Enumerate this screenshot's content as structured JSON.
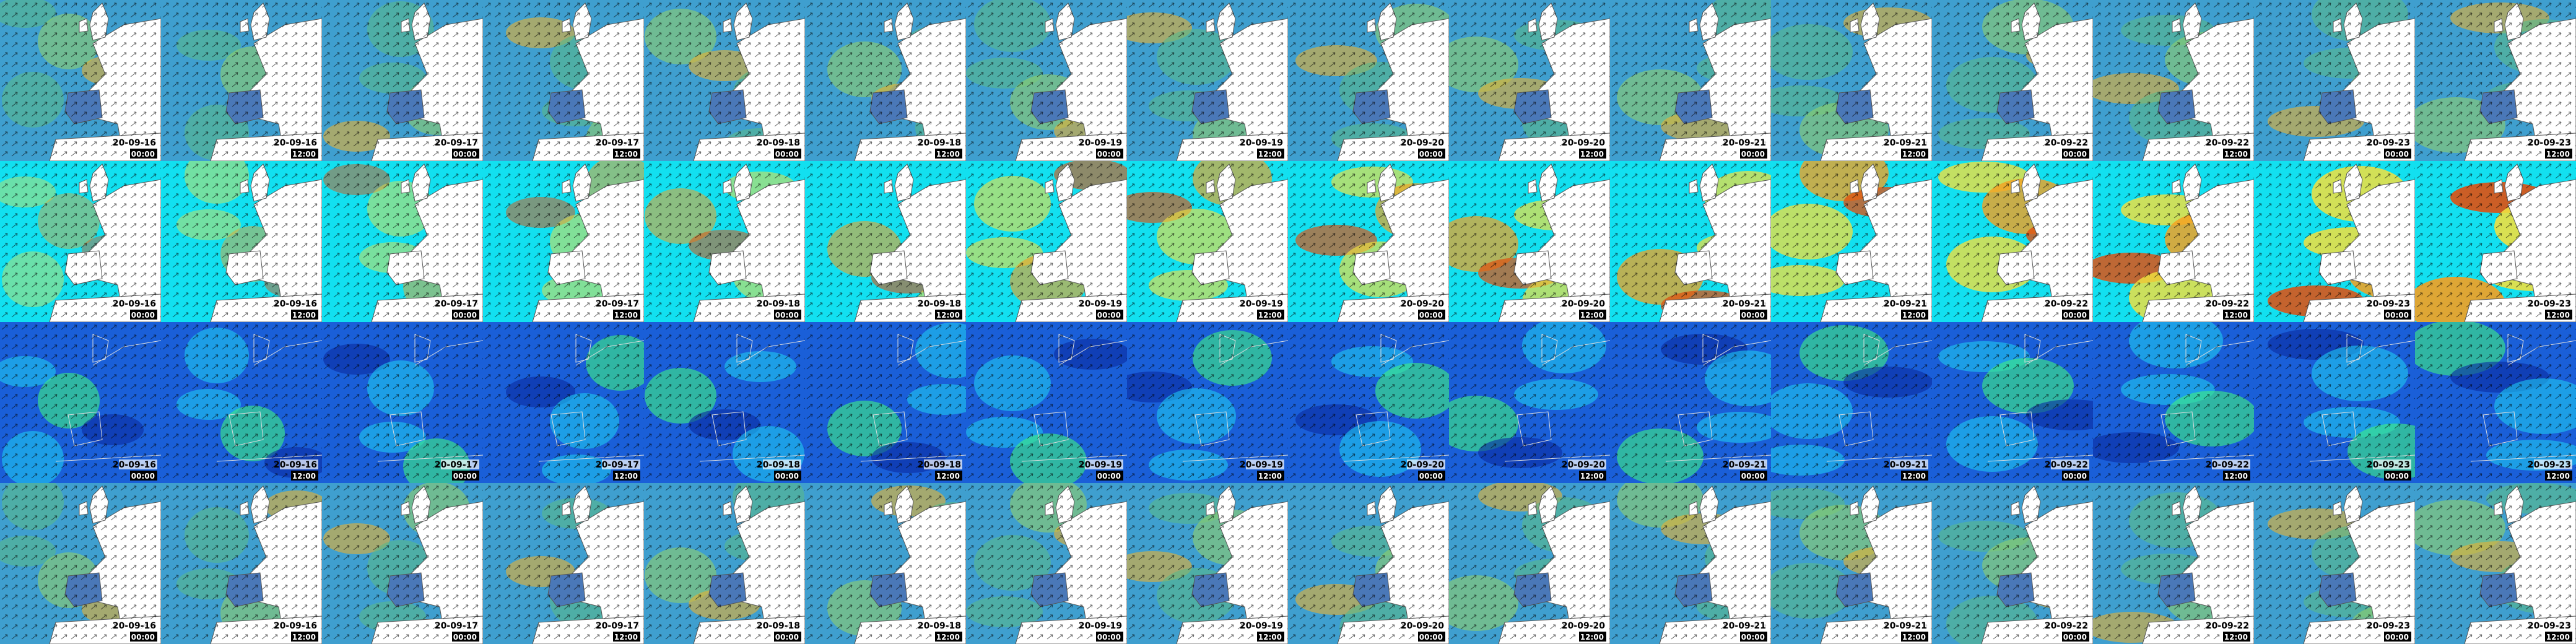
{
  "rows": [
    {
      "tiles": [
        {
          "date": "20-09-16",
          "time": "00:00"
        },
        {
          "date": "20-09-16",
          "time": "12:00"
        },
        {
          "date": "20-09-17",
          "time": "00:00"
        },
        {
          "date": "20-09-17",
          "time": "12:00"
        },
        {
          "date": "20-09-18",
          "time": "00:00"
        },
        {
          "date": "20-09-18",
          "time": "12:00"
        },
        {
          "date": "20-09-19",
          "time": "00:00"
        },
        {
          "date": "20-09-19",
          "time": "12:00"
        },
        {
          "date": "20-09-20",
          "time": "00:00"
        },
        {
          "date": "20-09-20",
          "time": "12:00"
        },
        {
          "date": "20-09-21",
          "time": "00:00"
        },
        {
          "date": "20-09-21",
          "time": "12:00"
        },
        {
          "date": "20-09-22",
          "time": "00:00"
        },
        {
          "date": "20-09-22",
          "time": "12:00"
        },
        {
          "date": "20-09-23",
          "time": "00:00"
        },
        {
          "date": "20-09-23",
          "time": "12:00"
        }
      ]
    },
    {
      "tiles": [
        {
          "date": "20-09-16",
          "time": "00:00"
        },
        {
          "date": "20-09-16",
          "time": "12:00"
        },
        {
          "date": "20-09-17",
          "time": "00:00"
        },
        {
          "date": "20-09-17",
          "time": "12:00"
        },
        {
          "date": "20-09-18",
          "time": "00:00"
        },
        {
          "date": "20-09-18",
          "time": "12:00"
        },
        {
          "date": "20-09-19",
          "time": "00:00"
        },
        {
          "date": "20-09-19",
          "time": "12:00"
        },
        {
          "date": "20-09-20",
          "time": "00:00"
        },
        {
          "date": "20-09-20",
          "time": "12:00"
        },
        {
          "date": "20-09-21",
          "time": "00:00"
        },
        {
          "date": "20-09-21",
          "time": "12:00"
        },
        {
          "date": "20-09-22",
          "time": "00:00"
        },
        {
          "date": "20-09-22",
          "time": "12:00"
        },
        {
          "date": "20-09-23",
          "time": "00:00"
        },
        {
          "date": "20-09-23",
          "time": "12:00"
        }
      ]
    },
    {
      "tiles": [
        {
          "date": "20-09-16",
          "time": "00:00"
        },
        {
          "date": "20-09-16",
          "time": "12:00"
        },
        {
          "date": "20-09-17",
          "time": "00:00"
        },
        {
          "date": "20-09-17",
          "time": "12:00"
        },
        {
          "date": "20-09-18",
          "time": "00:00"
        },
        {
          "date": "20-09-18",
          "time": "12:00"
        },
        {
          "date": "20-09-19",
          "time": "00:00"
        },
        {
          "date": "20-09-19",
          "time": "12:00"
        },
        {
          "date": "20-09-20",
          "time": "00:00"
        },
        {
          "date": "20-09-20",
          "time": "12:00"
        },
        {
          "date": "20-09-21",
          "time": "00:00"
        },
        {
          "date": "20-09-21",
          "time": "12:00"
        },
        {
          "date": "20-09-22",
          "time": "00:00"
        },
        {
          "date": "20-09-22",
          "time": "12:00"
        },
        {
          "date": "20-09-23",
          "time": "00:00"
        },
        {
          "date": "20-09-23",
          "time": "12:00"
        }
      ]
    },
    {
      "tiles": [
        {
          "date": "20-09-16",
          "time": "00:00"
        },
        {
          "date": "20-09-16",
          "time": "12:00"
        },
        {
          "date": "20-09-17",
          "time": "00:00"
        },
        {
          "date": "20-09-17",
          "time": "12:00"
        },
        {
          "date": "20-09-18",
          "time": "00:00"
        },
        {
          "date": "20-09-18",
          "time": "12:00"
        },
        {
          "date": "20-09-19",
          "time": "00:00"
        },
        {
          "date": "20-09-19",
          "time": "12:00"
        },
        {
          "date": "20-09-20",
          "time": "00:00"
        },
        {
          "date": "20-09-20",
          "time": "12:00"
        },
        {
          "date": "20-09-21",
          "time": "00:00"
        },
        {
          "date": "20-09-21",
          "time": "12:00"
        },
        {
          "date": "20-09-22",
          "time": "00:00"
        },
        {
          "date": "20-09-22",
          "time": "12:00"
        },
        {
          "date": "20-09-23",
          "time": "00:00"
        },
        {
          "date": "20-09-23",
          "time": "12:00"
        }
      ]
    }
  ]
}
